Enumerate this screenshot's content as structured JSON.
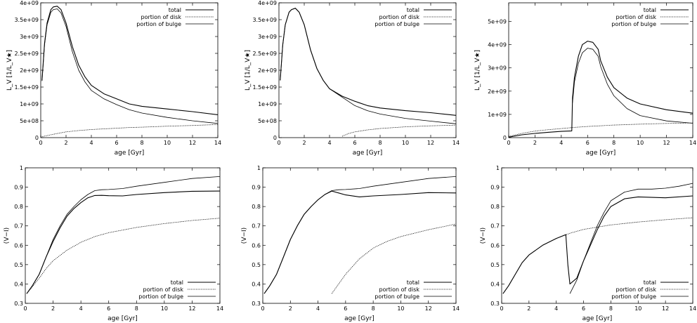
{
  "chart_data": [
    {
      "type": "line",
      "xlabel": "age [Gyr]",
      "ylabel": "L_V [1/L_V★]",
      "xlim": [
        0,
        14
      ],
      "ylim": [
        0,
        4000000000
      ],
      "xticks": [
        0,
        2,
        4,
        6,
        8,
        10,
        12,
        14
      ],
      "xtick_labels": [
        "0",
        "2",
        "4",
        "6",
        "8",
        "10",
        "12",
        "14"
      ],
      "yticks": [
        0,
        500000000,
        1000000000,
        1500000000,
        2000000000,
        2500000000,
        3000000000,
        3500000000,
        4000000000
      ],
      "ytick_labels": [
        "0",
        "5e+08",
        "1e+09",
        "1.5e+09",
        "2e+09",
        "2.5e+09",
        "3e+09",
        "3.5e+09",
        "4e+09"
      ],
      "legend_position": "top-right",
      "series": [
        {
          "name": "total",
          "x": [
            0.1,
            0.3,
            0.5,
            0.8,
            1.0,
            1.3,
            1.6,
            2.0,
            2.5,
            3.0,
            3.5,
            4.0,
            5.0,
            6.0,
            7.0,
            8.0,
            10.0,
            12.0,
            14.0
          ],
          "y": [
            1700000000,
            2800000000,
            3400000000,
            3800000000,
            3880000000,
            3900000000,
            3800000000,
            3400000000,
            2700000000,
            2150000000,
            1800000000,
            1550000000,
            1300000000,
            1150000000,
            1000000000,
            930000000,
            850000000,
            770000000,
            680000000
          ]
        },
        {
          "name": "portion of disk",
          "x": [
            0,
            1,
            2,
            3,
            4,
            5,
            6,
            7,
            8,
            10,
            12,
            14
          ],
          "y": [
            20000000,
            100000000,
            170000000,
            210000000,
            240000000,
            260000000,
            280000000,
            300000000,
            310000000,
            340000000,
            360000000,
            390000000
          ]
        },
        {
          "name": "portion of bulge",
          "x": [
            0.1,
            0.3,
            0.5,
            0.8,
            1.0,
            1.3,
            1.6,
            2.0,
            2.5,
            3.0,
            3.5,
            4.0,
            5.0,
            6.0,
            7.0,
            8.0,
            10.0,
            12.0,
            14.0
          ],
          "y": [
            1680000000,
            2750000000,
            3350000000,
            3720000000,
            3800000000,
            3820000000,
            3700000000,
            3300000000,
            2550000000,
            2000000000,
            1650000000,
            1400000000,
            1150000000,
            980000000,
            830000000,
            730000000,
            600000000,
            500000000,
            420000000
          ]
        }
      ]
    },
    {
      "type": "line",
      "xlabel": "age [Gyr]",
      "ylabel": "L_V [1/L_V★]",
      "xlim": [
        0,
        14
      ],
      "ylim": [
        0,
        4000000000
      ],
      "xticks": [
        0,
        2,
        4,
        6,
        8,
        10,
        12,
        14
      ],
      "xtick_labels": [
        "0",
        "2",
        "4",
        "6",
        "8",
        "10",
        "12",
        "14"
      ],
      "yticks": [
        0,
        500000000,
        1000000000,
        1500000000,
        2000000000,
        2500000000,
        3000000000,
        3500000000,
        4000000000
      ],
      "ytick_labels": [
        "0",
        "5e+08",
        "1e+09",
        "1.5e+09",
        "2e+09",
        "2.5e+09",
        "3e+09",
        "3.5e+09",
        "4e+09"
      ],
      "legend_position": "top-right",
      "series": [
        {
          "name": "total",
          "x": [
            0.1,
            0.3,
            0.5,
            0.8,
            1.0,
            1.3,
            1.6,
            2.0,
            2.5,
            3.0,
            3.5,
            4.0,
            5.0,
            6.0,
            7.0,
            8.0,
            10.0,
            12.0,
            14.0
          ],
          "y": [
            1700000000,
            2750000000,
            3350000000,
            3720000000,
            3800000000,
            3840000000,
            3720000000,
            3350000000,
            2600000000,
            2050000000,
            1700000000,
            1450000000,
            1230000000,
            1080000000,
            950000000,
            880000000,
            800000000,
            740000000,
            660000000
          ]
        },
        {
          "name": "portion of disk",
          "x": [
            5.0,
            5.5,
            6.0,
            7.0,
            8.0,
            10.0,
            12.0,
            14.0
          ],
          "y": [
            40000000,
            120000000,
            170000000,
            230000000,
            270000000,
            320000000,
            350000000,
            370000000
          ]
        },
        {
          "name": "portion of bulge",
          "x": [
            0.1,
            0.3,
            0.5,
            0.8,
            1.0,
            1.3,
            1.6,
            2.0,
            2.5,
            3.0,
            3.5,
            4.0,
            5.0,
            6.0,
            7.0,
            8.0,
            10.0,
            12.0,
            14.0
          ],
          "y": [
            1700000000,
            2750000000,
            3350000000,
            3720000000,
            3800000000,
            3840000000,
            3720000000,
            3350000000,
            2600000000,
            2050000000,
            1700000000,
            1450000000,
            1200000000,
            950000000,
            800000000,
            700000000,
            570000000,
            490000000,
            410000000
          ]
        }
      ]
    },
    {
      "type": "line",
      "xlabel": "age [Gyr]",
      "ylabel": "L_V [1/L_V★]",
      "xlim": [
        0,
        14
      ],
      "ylim": [
        0,
        5800000000
      ],
      "xticks": [
        0,
        2,
        4,
        6,
        8,
        10,
        12,
        14
      ],
      "xtick_labels": [
        "0",
        "2",
        "4",
        "6",
        "8",
        "10",
        "12",
        "14"
      ],
      "yticks": [
        0,
        1000000000,
        2000000000,
        3000000000,
        4000000000,
        5000000000
      ],
      "ytick_labels": [
        "0",
        "1e+09",
        "2e+09",
        "3e+09",
        "4e+09",
        "5e+09"
      ],
      "legend_position": "top-right",
      "series": [
        {
          "name": "total",
          "x": [
            0,
            1,
            2,
            3,
            4,
            4.8,
            4.85,
            5.0,
            5.3,
            5.6,
            6.0,
            6.4,
            6.8,
            7.0,
            7.5,
            8.0,
            9.0,
            10.0,
            12.0,
            14.0
          ],
          "y": [
            20000000,
            120000000,
            180000000,
            230000000,
            270000000,
            290000000,
            1700000000,
            2600000000,
            3500000000,
            4000000000,
            4150000000,
            4100000000,
            3800000000,
            3300000000,
            2600000000,
            2150000000,
            1700000000,
            1450000000,
            1200000000,
            1050000000
          ]
        },
        {
          "name": "portion of disk",
          "x": [
            0,
            1,
            2,
            3,
            4,
            5,
            6,
            7,
            8,
            10,
            12,
            14
          ],
          "y": [
            50000000,
            180000000,
            280000000,
            340000000,
            390000000,
            440000000,
            480000000,
            510000000,
            540000000,
            580000000,
            610000000,
            630000000
          ]
        },
        {
          "name": "portion of bulge",
          "x": [
            4.85,
            5.0,
            5.3,
            5.6,
            6.0,
            6.4,
            6.8,
            7.0,
            7.5,
            8.0,
            9.0,
            10.0,
            12.0,
            14.0
          ],
          "y": [
            1500000000,
            2400000000,
            3200000000,
            3650000000,
            3850000000,
            3800000000,
            3500000000,
            3050000000,
            2300000000,
            1800000000,
            1250000000,
            950000000,
            720000000,
            620000000
          ]
        }
      ]
    },
    {
      "type": "line",
      "xlabel": "age [Gyr]",
      "ylabel": "(V−I)",
      "xlim": [
        0,
        14
      ],
      "ylim": [
        0.3,
        1.0
      ],
      "xticks": [
        0,
        2,
        4,
        6,
        8,
        10,
        12,
        14
      ],
      "xtick_labels": [
        "0",
        "2",
        "4",
        "6",
        "8",
        "10",
        "12",
        "14"
      ],
      "yticks": [
        0.3,
        0.4,
        0.5,
        0.6,
        0.7,
        0.8,
        0.9,
        1.0
      ],
      "ytick_labels": [
        "0.3",
        "0.4",
        "0.5",
        "0.6",
        "0.7",
        "0.8",
        "0.9",
        "1"
      ],
      "legend_position": "bottom-right",
      "series": [
        {
          "name": "total",
          "x": [
            0.1,
            0.5,
            1.0,
            1.5,
            2.0,
            2.5,
            3.0,
            3.5,
            4.0,
            4.5,
            5.0,
            5.5,
            6.0,
            7.0,
            8.0,
            10.0,
            12.0,
            14.0
          ],
          "y": [
            0.35,
            0.39,
            0.45,
            0.54,
            0.62,
            0.69,
            0.75,
            0.79,
            0.82,
            0.845,
            0.857,
            0.858,
            0.856,
            0.855,
            0.862,
            0.872,
            0.879,
            0.88
          ]
        },
        {
          "name": "portion of disk",
          "x": [
            0.1,
            0.5,
            1.0,
            1.5,
            2.0,
            3.0,
            4.0,
            5.0,
            6.0,
            8.0,
            10.0,
            12.0,
            14.0
          ],
          "y": [
            0.35,
            0.385,
            0.43,
            0.48,
            0.52,
            0.575,
            0.615,
            0.645,
            0.665,
            0.692,
            0.712,
            0.728,
            0.74
          ]
        },
        {
          "name": "portion of bulge",
          "x": [
            0.1,
            0.5,
            1.0,
            1.5,
            2.0,
            2.5,
            3.0,
            3.5,
            4.0,
            4.5,
            5.0,
            5.5,
            6.0,
            7.0,
            8.0,
            10.0,
            12.0,
            14.0
          ],
          "y": [
            0.35,
            0.39,
            0.45,
            0.54,
            0.63,
            0.7,
            0.76,
            0.8,
            0.835,
            0.862,
            0.882,
            0.887,
            0.888,
            0.893,
            0.905,
            0.925,
            0.945,
            0.955
          ]
        }
      ]
    },
    {
      "type": "line",
      "xlabel": "age [Gyr]",
      "ylabel": "(V−I)",
      "xlim": [
        0,
        14
      ],
      "ylim": [
        0.3,
        1.0
      ],
      "xticks": [
        0,
        2,
        4,
        6,
        8,
        10,
        12,
        14
      ],
      "xtick_labels": [
        "0",
        "2",
        "4",
        "6",
        "8",
        "10",
        "12",
        "14"
      ],
      "yticks": [
        0.3,
        0.4,
        0.5,
        0.6,
        0.7,
        0.8,
        0.9,
        1.0
      ],
      "ytick_labels": [
        "0.3",
        "0.4",
        "0.5",
        "0.6",
        "0.7",
        "0.8",
        "0.9",
        "1"
      ],
      "legend_position": "bottom-right",
      "series": [
        {
          "name": "total",
          "x": [
            0.1,
            0.5,
            1.0,
            1.5,
            2.0,
            2.5,
            3.0,
            3.5,
            4.0,
            4.5,
            5.0,
            5.5,
            6.0,
            7.0,
            8.0,
            10.0,
            12.0,
            14.0
          ],
          "y": [
            0.35,
            0.39,
            0.45,
            0.54,
            0.63,
            0.7,
            0.76,
            0.8,
            0.835,
            0.862,
            0.88,
            0.87,
            0.86,
            0.85,
            0.855,
            0.862,
            0.872,
            0.87
          ]
        },
        {
          "name": "portion of disk",
          "x": [
            5.0,
            5.5,
            6.0,
            6.5,
            7.0,
            8.0,
            9.0,
            10.0,
            12.0,
            14.0
          ],
          "y": [
            0.35,
            0.4,
            0.45,
            0.49,
            0.53,
            0.585,
            0.62,
            0.645,
            0.68,
            0.71
          ]
        },
        {
          "name": "portion of bulge",
          "x": [
            0.1,
            0.5,
            1.0,
            1.5,
            2.0,
            2.5,
            3.0,
            3.5,
            4.0,
            4.5,
            5.0,
            5.5,
            6.0,
            7.0,
            8.0,
            10.0,
            12.0,
            14.0
          ],
          "y": [
            0.35,
            0.39,
            0.45,
            0.54,
            0.63,
            0.7,
            0.76,
            0.8,
            0.835,
            0.862,
            0.882,
            0.887,
            0.888,
            0.893,
            0.905,
            0.925,
            0.945,
            0.955
          ]
        }
      ]
    },
    {
      "type": "line",
      "xlabel": "age [Gyr]",
      "ylabel": "(V−I)",
      "xlim": [
        0,
        14
      ],
      "ylim": [
        0.3,
        1.0
      ],
      "xticks": [
        0,
        2,
        4,
        6,
        8,
        10,
        12,
        14
      ],
      "xtick_labels": [
        "0",
        "2",
        "4",
        "6",
        "8",
        "10",
        "12",
        "14"
      ],
      "yticks": [
        0.3,
        0.4,
        0.5,
        0.6,
        0.7,
        0.8,
        0.9,
        1.0
      ],
      "ytick_labels": [
        "0.3",
        "0.4",
        "0.5",
        "0.6",
        "0.7",
        "0.8",
        "0.9",
        "1"
      ],
      "legend_position": "bottom-right",
      "series": [
        {
          "name": "total",
          "x": [
            0.1,
            0.5,
            1.0,
            1.5,
            2.0,
            3.0,
            4.0,
            4.7,
            4.85,
            5.0,
            5.5,
            6.0,
            6.5,
            7.0,
            7.5,
            8.0,
            9.0,
            10.0,
            12.0,
            14.0
          ],
          "y": [
            0.35,
            0.39,
            0.45,
            0.51,
            0.55,
            0.6,
            0.635,
            0.655,
            0.5,
            0.4,
            0.43,
            0.52,
            0.6,
            0.68,
            0.75,
            0.8,
            0.84,
            0.85,
            0.845,
            0.855
          ]
        },
        {
          "name": "portion of disk",
          "x": [
            0.1,
            0.5,
            1.0,
            1.5,
            2.0,
            3.0,
            4.0,
            5.0,
            6.0,
            8.0,
            10.0,
            12.0,
            14.0
          ],
          "y": [
            0.35,
            0.39,
            0.45,
            0.51,
            0.55,
            0.6,
            0.635,
            0.662,
            0.682,
            0.705,
            0.72,
            0.732,
            0.742
          ]
        },
        {
          "name": "portion of bulge",
          "x": [
            5.0,
            5.5,
            6.0,
            6.5,
            7.0,
            7.5,
            8.0,
            9.0,
            10.0,
            11.0,
            12.0,
            13.0,
            14.0
          ],
          "y": [
            0.35,
            0.42,
            0.52,
            0.61,
            0.7,
            0.77,
            0.83,
            0.875,
            0.89,
            0.89,
            0.895,
            0.905,
            0.92
          ]
        }
      ]
    }
  ]
}
